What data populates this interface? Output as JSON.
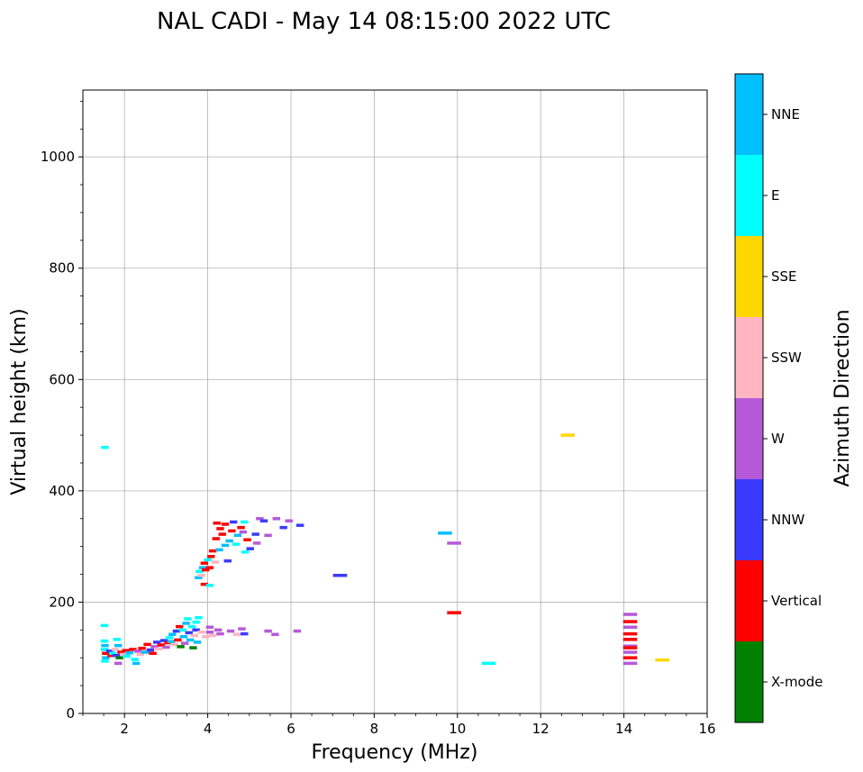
{
  "chart_data": {
    "type": "scatter",
    "title": "NAL CADI - May 14 08:15:00 2022 UTC",
    "xlabel": "Frequency (MHz)",
    "ylabel": "Virtual height (km)",
    "xlim": [
      1,
      16
    ],
    "ylim": [
      0,
      1120
    ],
    "xticks": [
      2,
      4,
      6,
      8,
      10,
      12,
      14,
      16
    ],
    "yticks": [
      0,
      200,
      400,
      600,
      800,
      1000
    ],
    "grid": true,
    "colorbar": {
      "label": "Azimuth Direction",
      "categories": [
        {
          "name": "X-mode",
          "color": "#008000"
        },
        {
          "name": "Vertical",
          "color": "#ff0000"
        },
        {
          "name": "NNW",
          "color": "#3a3aff"
        },
        {
          "name": "W",
          "color": "#b659d8"
        },
        {
          "name": "SSW",
          "color": "#ffb6c1"
        },
        {
          "name": "SSE",
          "color": "#ffd700"
        },
        {
          "name": "E",
          "color": "#00ffff"
        },
        {
          "name": "NNE",
          "color": "#00bfff"
        }
      ]
    },
    "points": [
      {
        "f": 1.53,
        "h": 478,
        "c": "E"
      },
      {
        "f": 1.52,
        "h": 158,
        "c": "E"
      },
      {
        "f": 1.52,
        "h": 130,
        "c": "E"
      },
      {
        "f": 1.53,
        "h": 122,
        "c": "NNE"
      },
      {
        "f": 1.52,
        "h": 115,
        "c": "E"
      },
      {
        "f": 1.55,
        "h": 108,
        "c": "Vertical"
      },
      {
        "f": 1.55,
        "h": 100,
        "c": "NNE"
      },
      {
        "f": 1.53,
        "h": 94,
        "c": "E"
      },
      {
        "f": 1.65,
        "h": 112,
        "c": "NNW"
      },
      {
        "f": 1.68,
        "h": 104,
        "c": "Vertical"
      },
      {
        "f": 1.72,
        "h": 108,
        "c": "E"
      },
      {
        "f": 1.78,
        "h": 115,
        "c": "SSW"
      },
      {
        "f": 1.8,
        "h": 104,
        "c": "NNW"
      },
      {
        "f": 1.82,
        "h": 133,
        "c": "E"
      },
      {
        "f": 1.85,
        "h": 122,
        "c": "NNE"
      },
      {
        "f": 1.85,
        "h": 90,
        "c": "W"
      },
      {
        "f": 1.88,
        "h": 100,
        "c": "X-mode"
      },
      {
        "f": 1.92,
        "h": 110,
        "c": "Vertical"
      },
      {
        "f": 1.98,
        "h": 106,
        "c": "SSW"
      },
      {
        "f": 2.03,
        "h": 113,
        "c": "Vertical"
      },
      {
        "f": 2.05,
        "h": 103,
        "c": "E"
      },
      {
        "f": 2.12,
        "h": 109,
        "c": "NNE"
      },
      {
        "f": 2.2,
        "h": 115,
        "c": "Vertical"
      },
      {
        "f": 2.25,
        "h": 97,
        "c": "E"
      },
      {
        "f": 2.28,
        "h": 90,
        "c": "NNE"
      },
      {
        "f": 2.32,
        "h": 112,
        "c": "W"
      },
      {
        "f": 2.38,
        "h": 106,
        "c": "SSW"
      },
      {
        "f": 2.42,
        "h": 117,
        "c": "Vertical"
      },
      {
        "f": 2.5,
        "h": 110,
        "c": "NNE"
      },
      {
        "f": 2.55,
        "h": 124,
        "c": "Vertical"
      },
      {
        "f": 2.62,
        "h": 114,
        "c": "NNW"
      },
      {
        "f": 2.68,
        "h": 108,
        "c": "Vertical"
      },
      {
        "f": 2.72,
        "h": 120,
        "c": "W"
      },
      {
        "f": 2.78,
        "h": 128,
        "c": "NNW"
      },
      {
        "f": 2.82,
        "h": 116,
        "c": "SSW"
      },
      {
        "f": 2.88,
        "h": 123,
        "c": "Vertical"
      },
      {
        "f": 2.95,
        "h": 131,
        "c": "NNW"
      },
      {
        "f": 3.0,
        "h": 119,
        "c": "W"
      },
      {
        "f": 3.05,
        "h": 127,
        "c": "Vertical"
      },
      {
        "f": 3.08,
        "h": 136,
        "c": "E"
      },
      {
        "f": 3.12,
        "h": 129,
        "c": "NNE"
      },
      {
        "f": 3.15,
        "h": 142,
        "c": "NNE"
      },
      {
        "f": 3.2,
        "h": 124,
        "c": "SSW"
      },
      {
        "f": 3.25,
        "h": 148,
        "c": "NNW"
      },
      {
        "f": 3.28,
        "h": 132,
        "c": "Vertical"
      },
      {
        "f": 3.32,
        "h": 156,
        "c": "Vertical"
      },
      {
        "f": 3.35,
        "h": 120,
        "c": "X-mode"
      },
      {
        "f": 3.4,
        "h": 150,
        "c": "E"
      },
      {
        "f": 3.42,
        "h": 138,
        "c": "NNE"
      },
      {
        "f": 3.45,
        "h": 126,
        "c": "W"
      },
      {
        "f": 3.48,
        "h": 162,
        "c": "NNE"
      },
      {
        "f": 3.52,
        "h": 170,
        "c": "E"
      },
      {
        "f": 3.55,
        "h": 145,
        "c": "NNW"
      },
      {
        "f": 3.58,
        "h": 132,
        "c": "NNE"
      },
      {
        "f": 3.62,
        "h": 156,
        "c": "E"
      },
      {
        "f": 3.65,
        "h": 118,
        "c": "X-mode"
      },
      {
        "f": 3.68,
        "h": 140,
        "c": "SSW"
      },
      {
        "f": 3.72,
        "h": 164,
        "c": "E"
      },
      {
        "f": 3.72,
        "h": 150,
        "c": "NNW"
      },
      {
        "f": 3.75,
        "h": 128,
        "c": "NNE"
      },
      {
        "f": 3.78,
        "h": 172,
        "c": "E"
      },
      {
        "f": 3.85,
        "h": 146,
        "c": "SSW"
      },
      {
        "f": 3.95,
        "h": 138,
        "c": "SSW"
      },
      {
        "f": 4.05,
        "h": 155,
        "c": "W"
      },
      {
        "f": 4.05,
        "h": 146,
        "c": "W"
      },
      {
        "f": 4.12,
        "h": 140,
        "c": "SSW"
      },
      {
        "f": 4.25,
        "h": 150,
        "c": "W"
      },
      {
        "f": 4.3,
        "h": 143,
        "c": "W"
      },
      {
        "f": 4.55,
        "h": 148,
        "c": "W"
      },
      {
        "f": 4.7,
        "h": 142,
        "c": "SSW"
      },
      {
        "f": 4.82,
        "h": 152,
        "c": "W"
      },
      {
        "f": 4.88,
        "h": 143,
        "c": "NNW"
      },
      {
        "f": 5.45,
        "h": 148,
        "c": "W"
      },
      {
        "f": 5.62,
        "h": 142,
        "c": "W"
      },
      {
        "f": 6.15,
        "h": 148,
        "c": "W"
      },
      {
        "f": 3.78,
        "h": 244,
        "c": "NNE"
      },
      {
        "f": 3.8,
        "h": 255,
        "c": "E"
      },
      {
        "f": 3.85,
        "h": 248,
        "c": "SSW"
      },
      {
        "f": 3.88,
        "h": 262,
        "c": "NNE"
      },
      {
        "f": 3.92,
        "h": 270,
        "c": "Vertical"
      },
      {
        "f": 3.92,
        "h": 232,
        "c": "Vertical"
      },
      {
        "f": 3.95,
        "h": 258,
        "c": "Vertical"
      },
      {
        "f": 4.0,
        "h": 276,
        "c": "E"
      },
      {
        "f": 4.05,
        "h": 262,
        "c": "Vertical"
      },
      {
        "f": 4.05,
        "h": 230,
        "c": "E"
      },
      {
        "f": 4.08,
        "h": 282,
        "c": "Vertical"
      },
      {
        "f": 4.12,
        "h": 292,
        "c": "Vertical"
      },
      {
        "f": 4.18,
        "h": 272,
        "c": "SSW"
      },
      {
        "f": 4.2,
        "h": 314,
        "c": "Vertical"
      },
      {
        "f": 4.22,
        "h": 342,
        "c": "Vertical"
      },
      {
        "f": 4.28,
        "h": 294,
        "c": "NNE"
      },
      {
        "f": 4.3,
        "h": 332,
        "c": "Vertical"
      },
      {
        "f": 4.35,
        "h": 322,
        "c": "Vertical"
      },
      {
        "f": 4.42,
        "h": 302,
        "c": "NNE"
      },
      {
        "f": 4.42,
        "h": 340,
        "c": "Vertical"
      },
      {
        "f": 4.48,
        "h": 274,
        "c": "NNW"
      },
      {
        "f": 4.52,
        "h": 310,
        "c": "NNE"
      },
      {
        "f": 4.58,
        "h": 328,
        "c": "Vertical"
      },
      {
        "f": 4.62,
        "h": 344,
        "c": "NNW"
      },
      {
        "f": 4.68,
        "h": 304,
        "c": "E"
      },
      {
        "f": 4.72,
        "h": 320,
        "c": "NNE"
      },
      {
        "f": 4.8,
        "h": 334,
        "c": "Vertical"
      },
      {
        "f": 4.85,
        "h": 326,
        "c": "W"
      },
      {
        "f": 4.88,
        "h": 344,
        "c": "E"
      },
      {
        "f": 4.9,
        "h": 290,
        "c": "E"
      },
      {
        "f": 4.95,
        "h": 312,
        "c": "Vertical"
      },
      {
        "f": 5.02,
        "h": 296,
        "c": "NNW"
      },
      {
        "f": 5.15,
        "h": 322,
        "c": "NNW"
      },
      {
        "f": 5.18,
        "h": 306,
        "c": "W"
      },
      {
        "f": 5.25,
        "h": 350,
        "c": "W"
      },
      {
        "f": 5.35,
        "h": 346,
        "c": "NNW"
      },
      {
        "f": 5.45,
        "h": 320,
        "c": "W"
      },
      {
        "f": 5.65,
        "h": 350,
        "c": "W"
      },
      {
        "f": 5.82,
        "h": 334,
        "c": "NNW"
      },
      {
        "f": 5.95,
        "h": 346,
        "c": "W"
      },
      {
        "f": 6.22,
        "h": 338,
        "c": "NNW"
      },
      {
        "f": 7.18,
        "h": 248,
        "c": "NNW"
      },
      {
        "f": 9.7,
        "h": 324,
        "c": "NNE"
      },
      {
        "f": 9.92,
        "h": 306,
        "c": "W"
      },
      {
        "f": 9.92,
        "h": 181,
        "c": "Vertical"
      },
      {
        "f": 10.75,
        "h": 90,
        "c": "E"
      },
      {
        "f": 12.65,
        "h": 500,
        "c": "SSE"
      },
      {
        "f": 14.15,
        "h": 178,
        "c": "W"
      },
      {
        "f": 14.15,
        "h": 165,
        "c": "Vertical"
      },
      {
        "f": 14.15,
        "h": 155,
        "c": "W"
      },
      {
        "f": 14.15,
        "h": 143,
        "c": "Vertical"
      },
      {
        "f": 14.15,
        "h": 133,
        "c": "Vertical"
      },
      {
        "f": 14.15,
        "h": 121,
        "c": "W"
      },
      {
        "f": 14.15,
        "h": 118,
        "c": "Vertical"
      },
      {
        "f": 14.15,
        "h": 110,
        "c": "W"
      },
      {
        "f": 14.15,
        "h": 100,
        "c": "Vertical"
      },
      {
        "f": 14.15,
        "h": 90,
        "c": "W"
      },
      {
        "f": 14.92,
        "h": 96,
        "c": "SSE"
      }
    ]
  }
}
